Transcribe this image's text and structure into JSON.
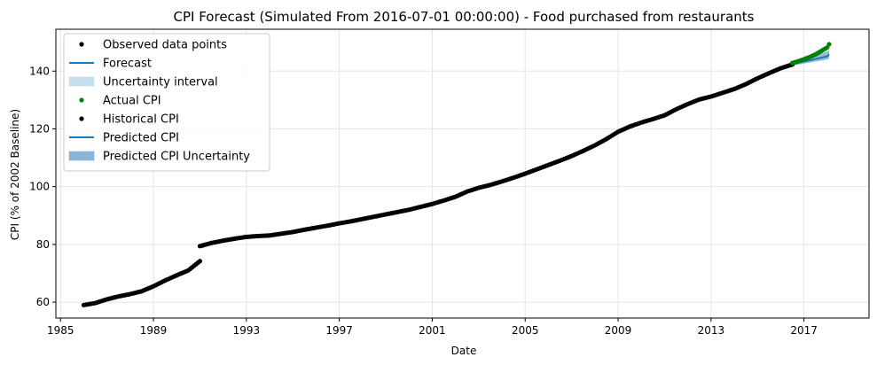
{
  "chart_data": {
    "type": "line",
    "title": "CPI Forecast (Simulated From 2016-07-01 00:00:00) - Food purchased from restaurants",
    "xlabel": "Date",
    "ylabel": "CPI (% of 2002 Baseline)",
    "x_ticks": [
      "1985",
      "1989",
      "1993",
      "1997",
      "2001",
      "2005",
      "2009",
      "2013",
      "2017"
    ],
    "y_ticks": [
      60,
      80,
      100,
      120,
      140
    ],
    "xlim": [
      1984.8,
      2019.8
    ],
    "ylim": [
      54.5,
      154.5
    ],
    "grid": true,
    "legend_position": "top-left",
    "legend": [
      {
        "label": "Observed data points",
        "kind": "dot",
        "color": "#000000"
      },
      {
        "label": "Forecast",
        "kind": "line",
        "color": "#1f77b4"
      },
      {
        "label": "Uncertainty interval",
        "kind": "band",
        "color": "#c5dfee"
      },
      {
        "label": "Actual CPI",
        "kind": "dot",
        "color": "#008000"
      },
      {
        "label": "Historical CPI",
        "kind": "dot",
        "color": "#000000"
      },
      {
        "label": "Predicted CPI",
        "kind": "line",
        "color": "#1f77b4"
      },
      {
        "label": "Predicted CPI Uncertainty",
        "kind": "band",
        "color": "#8ab5d6"
      }
    ],
    "historical_segments": [
      [
        [
          1986.0,
          59.0
        ],
        [
          1986.5,
          59.7
        ],
        [
          1987.0,
          61.0
        ],
        [
          1987.5,
          62.0
        ],
        [
          1988.0,
          62.8
        ],
        [
          1988.5,
          63.8
        ],
        [
          1989.0,
          65.5
        ],
        [
          1989.5,
          67.5
        ],
        [
          1990.0,
          69.3
        ],
        [
          1990.5,
          71.0
        ],
        [
          1991.0,
          74.2
        ]
      ],
      [
        [
          1991.0,
          79.4
        ],
        [
          1991.5,
          80.5
        ],
        [
          1992.0,
          81.3
        ],
        [
          1992.5,
          82.0
        ],
        [
          1993.0,
          82.6
        ],
        [
          1993.5,
          82.9
        ],
        [
          1994.0,
          83.1
        ],
        [
          1994.5,
          83.7
        ],
        [
          1995.0,
          84.3
        ],
        [
          1995.5,
          85.1
        ],
        [
          1996.0,
          85.8
        ],
        [
          1996.5,
          86.5
        ],
        [
          1997.0,
          87.3
        ],
        [
          1997.5,
          88.0
        ],
        [
          1998.0,
          88.8
        ],
        [
          1998.5,
          89.6
        ],
        [
          1999.0,
          90.4
        ],
        [
          1999.5,
          91.2
        ],
        [
          2000.0,
          92.0
        ],
        [
          2000.5,
          93.0
        ],
        [
          2001.0,
          94.0
        ],
        [
          2001.5,
          95.2
        ],
        [
          2002.0,
          96.5
        ],
        [
          2002.5,
          98.3
        ],
        [
          2003.0,
          99.6
        ],
        [
          2003.5,
          100.6
        ],
        [
          2004.0,
          101.8
        ],
        [
          2004.5,
          103.1
        ],
        [
          2005.0,
          104.5
        ],
        [
          2005.5,
          106.0
        ],
        [
          2006.0,
          107.5
        ],
        [
          2006.5,
          109.0
        ],
        [
          2007.0,
          110.6
        ],
        [
          2007.5,
          112.4
        ],
        [
          2008.0,
          114.3
        ],
        [
          2008.5,
          116.5
        ],
        [
          2009.0,
          119.0
        ],
        [
          2009.5,
          120.8
        ],
        [
          2010.0,
          122.2
        ],
        [
          2010.5,
          123.4
        ],
        [
          2011.0,
          124.7
        ],
        [
          2011.5,
          126.8
        ],
        [
          2012.0,
          128.6
        ],
        [
          2012.5,
          130.2
        ],
        [
          2013.0,
          131.2
        ],
        [
          2013.5,
          132.5
        ],
        [
          2014.0,
          133.8
        ],
        [
          2014.5,
          135.5
        ],
        [
          2015.0,
          137.5
        ],
        [
          2015.5,
          139.3
        ],
        [
          2016.0,
          141.0
        ],
        [
          2016.5,
          142.3
        ]
      ]
    ],
    "actual_cpi": [
      [
        2016.5,
        142.8
      ],
      [
        2016.75,
        143.4
      ],
      [
        2017.0,
        144.1
      ],
      [
        2017.25,
        144.9
      ],
      [
        2017.5,
        145.8
      ],
      [
        2017.75,
        147.0
      ],
      [
        2018.0,
        148.2
      ],
      [
        2018.08,
        149.3
      ]
    ],
    "predicted_cpi": [
      [
        2016.5,
        142.4
      ],
      [
        2017.0,
        143.3
      ],
      [
        2017.5,
        144.2
      ],
      [
        2018.0,
        145.1
      ],
      [
        2018.08,
        145.8
      ]
    ],
    "predicted_upper": [
      [
        2016.5,
        142.9
      ],
      [
        2017.0,
        144.3
      ],
      [
        2017.5,
        145.6
      ],
      [
        2018.0,
        146.8
      ],
      [
        2018.08,
        147.3
      ]
    ],
    "predicted_lower": [
      [
        2016.5,
        141.9
      ],
      [
        2017.0,
        142.6
      ],
      [
        2017.5,
        143.3
      ],
      [
        2018.0,
        144.0
      ],
      [
        2018.08,
        144.3
      ]
    ],
    "colors": {
      "historical": "#000000",
      "actual": "#008000",
      "predicted": "#1f77b4",
      "band": "#8ab5d6",
      "grid": "#e5e5e5"
    }
  }
}
